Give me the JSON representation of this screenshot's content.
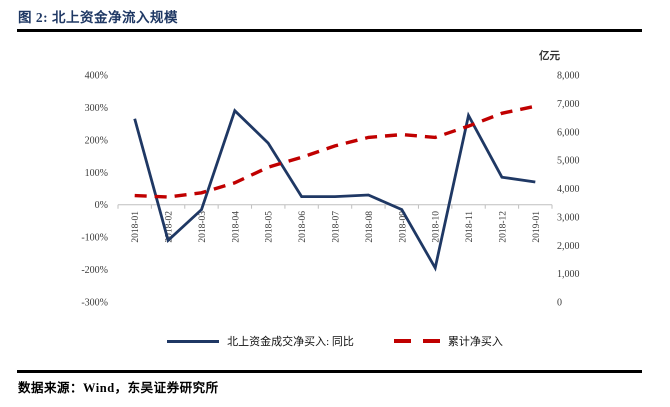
{
  "figure": {
    "title": "图 2: 北上资金净流入规模",
    "source_note": "数据来源：Wind，东吴证券研究所"
  },
  "chart_data": {
    "type": "line",
    "x": [
      "2018-01",
      "2018-02",
      "2018-03",
      "2018-04",
      "2018-05",
      "2018-06",
      "2018-07",
      "2018-08",
      "2018-09",
      "2018-10",
      "2018-11",
      "2018-12",
      "2019-01"
    ],
    "series": [
      {
        "name": "北上资金成交净买入: 同比",
        "axis": "left",
        "line_style": "solid",
        "color": "#1f3864",
        "values": [
          265,
          -110,
          -15,
          290,
          190,
          25,
          25,
          30,
          -15,
          -195,
          275,
          85,
          70
        ]
      },
      {
        "name": "累计净买入",
        "axis": "right",
        "line_style": "dashed",
        "color": "#c00000",
        "values": [
          3750,
          3700,
          3850,
          4200,
          4750,
          5100,
          5500,
          5800,
          5900,
          5800,
          6200,
          6650,
          6900
        ]
      }
    ],
    "left_axis": {
      "min": -300,
      "max": 400,
      "ticks": [
        "400%",
        "300%",
        "200%",
        "100%",
        "0%",
        "-100%",
        "-200%",
        "-300%"
      ]
    },
    "right_axis": {
      "min": 0,
      "max": 8000,
      "title": "亿元",
      "ticks": [
        "8,000",
        "7,000",
        "6,000",
        "5,000",
        "4,000",
        "3,000",
        "2,000",
        "1,000",
        "0"
      ]
    },
    "grid": false,
    "legend_position": "bottom",
    "axis_line_color": "#bfbfbf"
  }
}
